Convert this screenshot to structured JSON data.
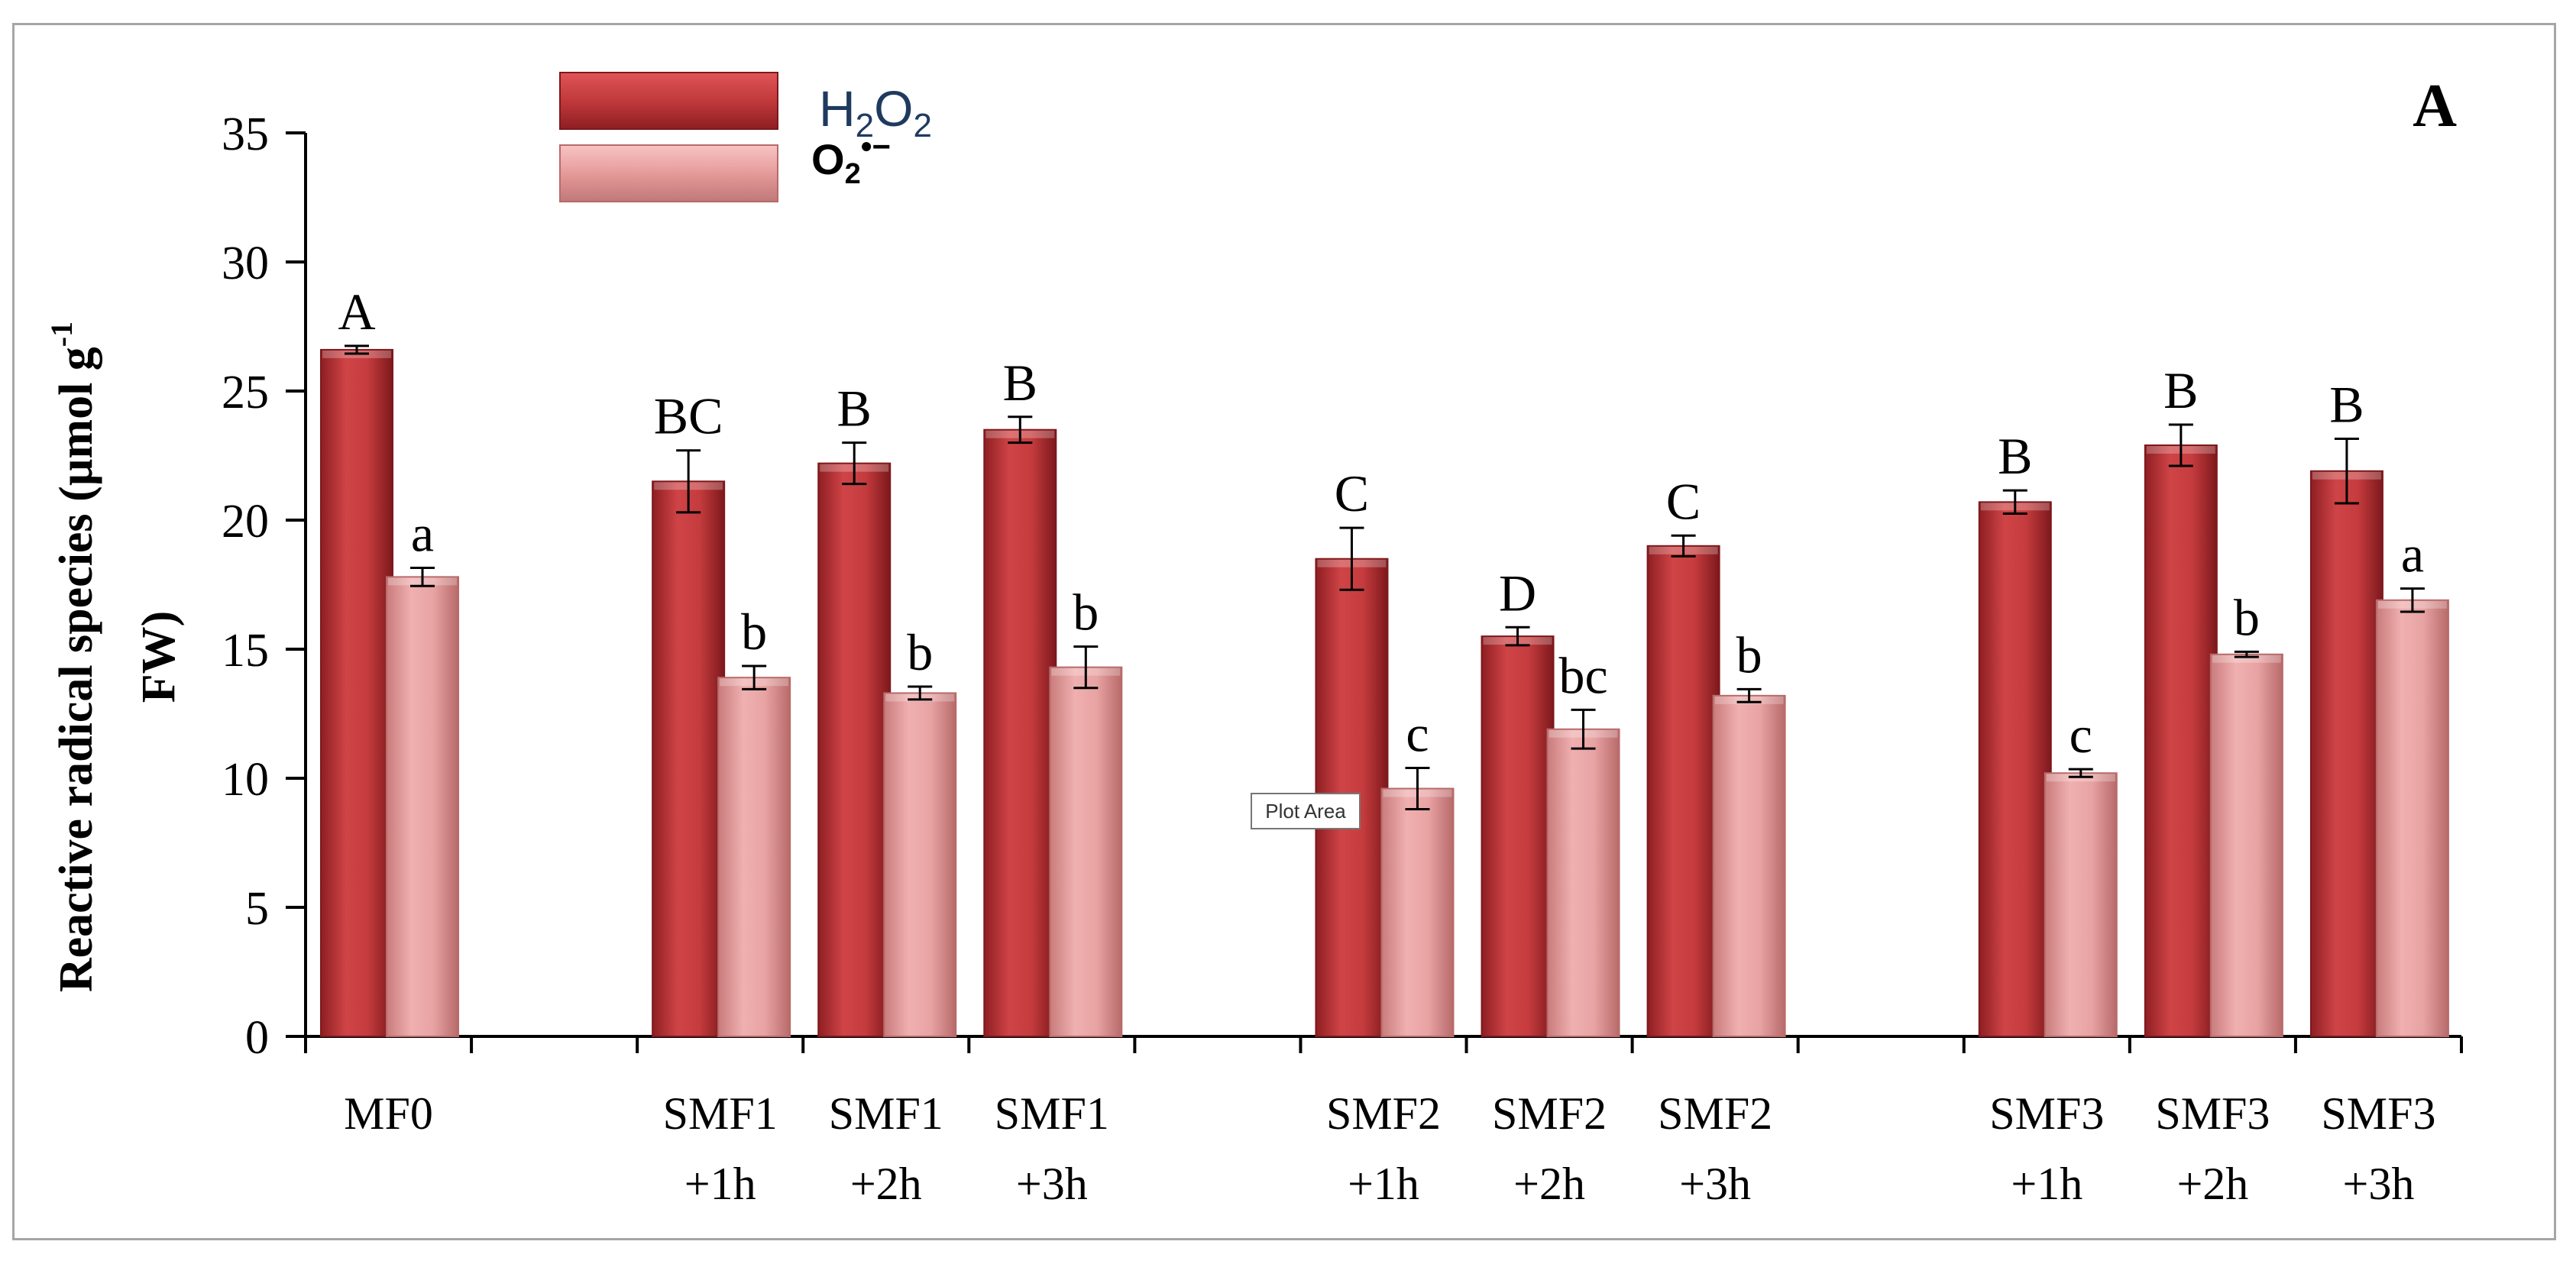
{
  "chart_data": {
    "type": "bar",
    "panel_label": "A",
    "ylabel_line1": "Reactive radical species (µmol g",
    "ylabel_sup": "-1",
    "ylabel_line2": "FW)",
    "ylim": [
      0,
      35
    ],
    "yticks": [
      0,
      5,
      10,
      15,
      20,
      25,
      30,
      35
    ],
    "grid": false,
    "legend_position": "top-left",
    "legend": [
      {
        "name": "H2O2",
        "label_main": "H",
        "label_sub1": "2",
        "label_mid": "O",
        "label_sub2": "2",
        "color": "#c1393b"
      },
      {
        "name": "O2•−",
        "label_main": "O",
        "label_sub": "2",
        "label_sup": "•−",
        "color": "#e69a9a"
      }
    ],
    "groups": [
      {
        "line1": "MF0",
        "line2": ""
      },
      {
        "line1": "",
        "line2": ""
      },
      {
        "line1": "SMF1",
        "line2": "+1h"
      },
      {
        "line1": "SMF1",
        "line2": "+2h"
      },
      {
        "line1": "SMF1",
        "line2": "+3h"
      },
      {
        "line1": "",
        "line2": ""
      },
      {
        "line1": "SMF2",
        "line2": "+1h"
      },
      {
        "line1": "SMF2",
        "line2": "+2h"
      },
      {
        "line1": "SMF2",
        "line2": "+3h"
      },
      {
        "line1": "",
        "line2": ""
      },
      {
        "line1": "SMF3",
        "line2": "+1h"
      },
      {
        "line1": "SMF3",
        "line2": "+2h"
      },
      {
        "line1": "SMF3",
        "line2": "+3h"
      }
    ],
    "series": [
      {
        "name": "H2O2",
        "color": "#c1393b",
        "values": [
          26.6,
          null,
          21.5,
          22.2,
          23.5,
          null,
          18.5,
          15.5,
          19.0,
          null,
          20.7,
          22.9,
          21.9
        ],
        "errors": [
          0.15,
          null,
          1.2,
          0.8,
          0.5,
          null,
          1.2,
          0.35,
          0.4,
          null,
          0.45,
          0.8,
          1.25
        ],
        "letters": [
          "A",
          null,
          "BC",
          "B",
          "B",
          null,
          "C",
          "D",
          "C",
          null,
          "B",
          "B",
          "B"
        ]
      },
      {
        "name": "O2•−",
        "color": "#e69a9a",
        "values": [
          17.8,
          null,
          13.9,
          13.3,
          14.3,
          null,
          9.6,
          11.9,
          13.2,
          null,
          10.2,
          14.8,
          16.9
        ],
        "errors": [
          0.35,
          null,
          0.45,
          0.25,
          0.8,
          null,
          0.8,
          0.75,
          0.25,
          null,
          0.15,
          0.1,
          0.45
        ],
        "letters": [
          "a",
          null,
          "b",
          "b",
          "b",
          null,
          "c",
          "bc",
          "b",
          null,
          "c",
          "b",
          "a"
        ]
      }
    ],
    "tooltip": "Plot Area"
  }
}
